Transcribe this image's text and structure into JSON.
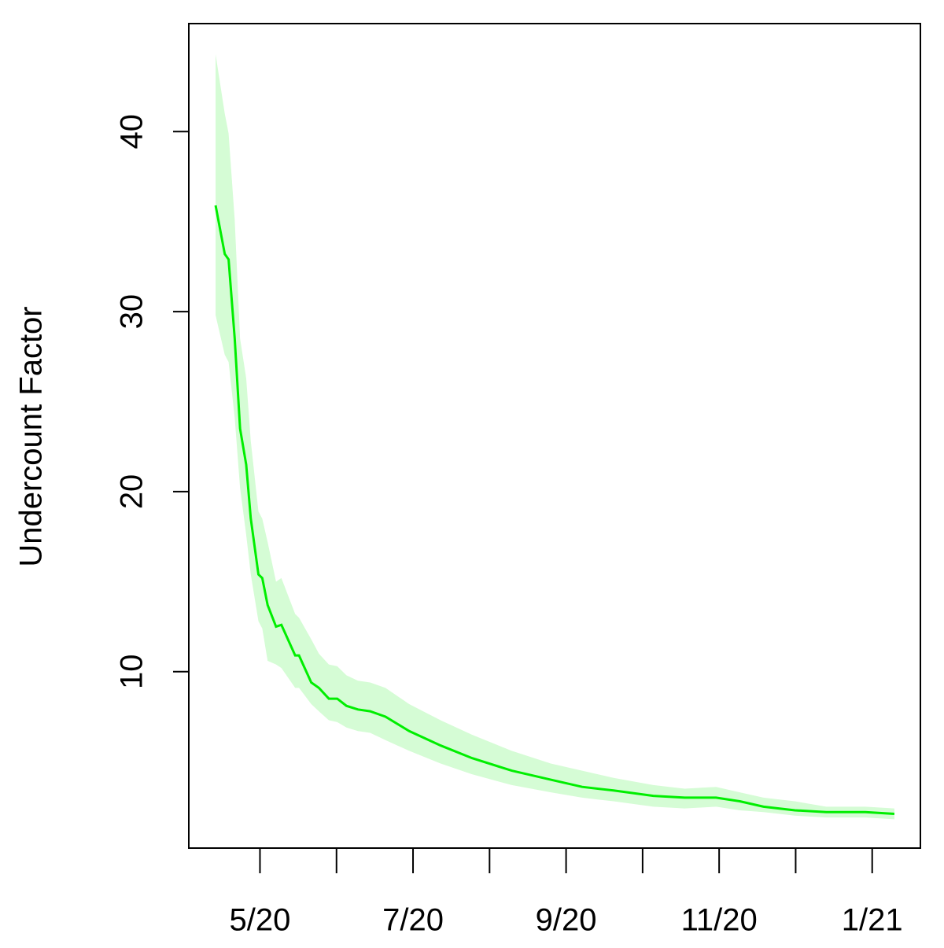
{
  "chart_data": {
    "type": "line",
    "ylabel": "Undercount Factor",
    "x": [
      4.42,
      4.54,
      4.59,
      4.67,
      4.74,
      4.82,
      4.88,
      4.98,
      5.03,
      5.1,
      5.21,
      5.28,
      5.46,
      5.51,
      5.67,
      5.77,
      5.9,
      6.01,
      6.13,
      6.28,
      6.44,
      6.64,
      6.95,
      7.36,
      7.77,
      8.29,
      8.8,
      9.21,
      9.62,
      10.14,
      10.55,
      10.96,
      11.27,
      11.58,
      11.99,
      12.4,
      12.91,
      13.29
    ],
    "values": [
      35.9,
      33.2,
      32.9,
      28.5,
      23.5,
      21.5,
      18.5,
      15.4,
      15.2,
      13.7,
      12.5,
      12.6,
      10.9,
      10.9,
      9.4,
      9.1,
      8.5,
      8.5,
      8.1,
      7.9,
      7.8,
      7.5,
      6.7,
      5.9,
      5.2,
      4.5,
      4.0,
      3.6,
      3.4,
      3.1,
      3.0,
      3.0,
      2.8,
      2.5,
      2.3,
      2.2,
      2.2,
      2.1
    ],
    "lower": [
      29.8,
      27.6,
      27.2,
      24.1,
      20.2,
      17.6,
      15.4,
      12.8,
      12.4,
      10.6,
      10.4,
      10.2,
      9.1,
      9.1,
      8.2,
      7.8,
      7.3,
      7.2,
      6.9,
      6.7,
      6.6,
      6.2,
      5.6,
      4.9,
      4.3,
      3.7,
      3.3,
      3.0,
      2.8,
      2.5,
      2.4,
      2.5,
      2.3,
      2.2,
      2.0,
      1.9,
      1.9,
      1.8
    ],
    "upper": [
      44.3,
      41.0,
      39.9,
      35.1,
      28.5,
      26.3,
      22.8,
      18.9,
      18.5,
      17.2,
      15.0,
      15.2,
      13.2,
      13.0,
      11.8,
      11.0,
      10.4,
      10.3,
      9.8,
      9.5,
      9.4,
      9.1,
      8.2,
      7.3,
      6.5,
      5.6,
      4.9,
      4.5,
      4.1,
      3.7,
      3.5,
      3.6,
      3.3,
      3.0,
      2.8,
      2.5,
      2.5,
      2.4
    ],
    "color": "#00ee00",
    "band_color": "#d5fcd5",
    "xlim": [
      4.07,
      13.63
    ],
    "xticks": [
      {
        "value": 5,
        "label": "5/20"
      },
      {
        "value": 6,
        "label": null
      },
      {
        "value": 7,
        "label": "7/20"
      },
      {
        "value": 8,
        "label": null
      },
      {
        "value": 9,
        "label": "9/20"
      },
      {
        "value": 10,
        "label": null
      },
      {
        "value": 11,
        "label": "11/20"
      },
      {
        "value": 12,
        "label": null
      },
      {
        "value": 13,
        "label": "1/21"
      }
    ],
    "ylim": [
      0.2,
      46
    ],
    "yticks": [
      10,
      20,
      30,
      40
    ]
  }
}
